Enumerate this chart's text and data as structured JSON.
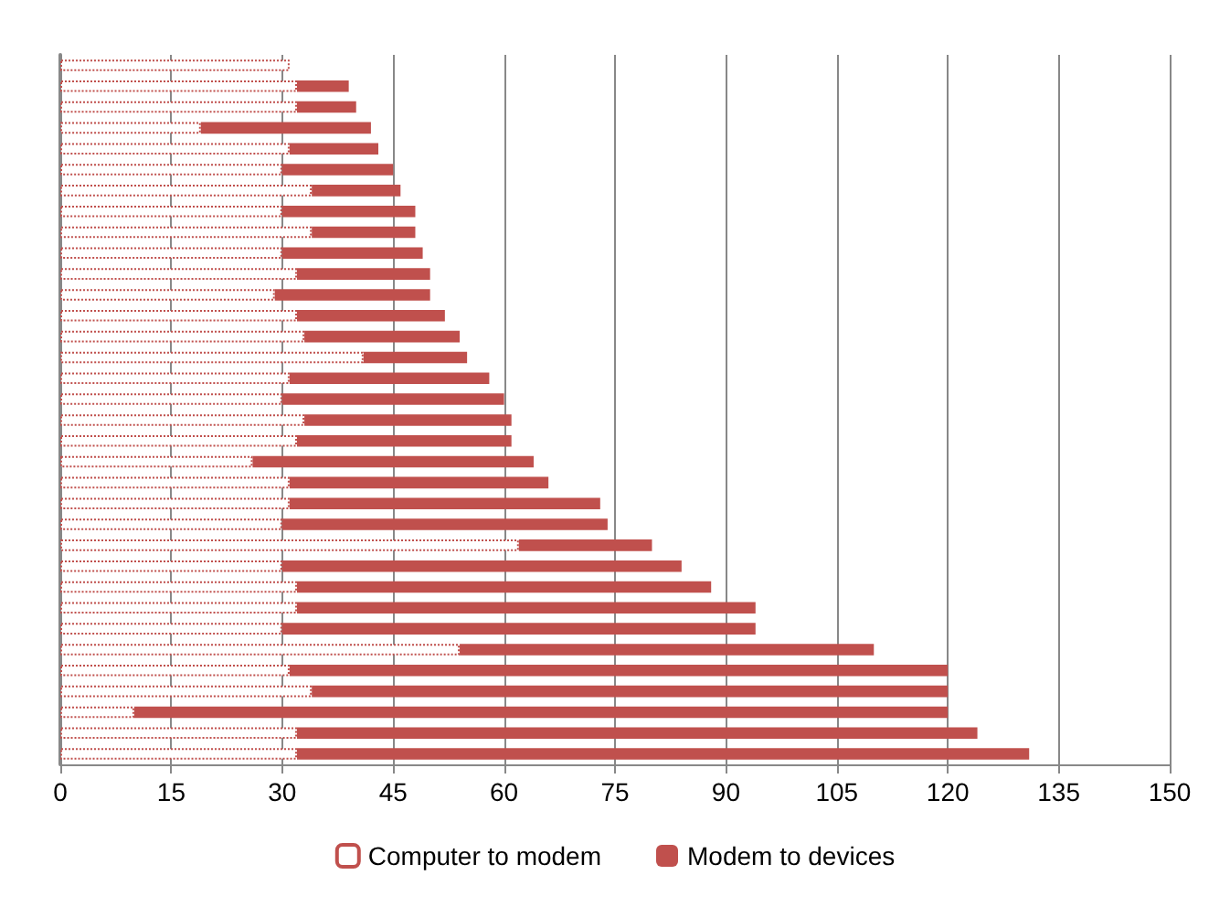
{
  "chart_data": {
    "type": "bar",
    "orientation": "horizontal",
    "stacked": true,
    "categories": [
      null,
      null,
      null,
      null,
      null,
      null,
      null,
      null,
      null,
      null,
      null,
      null,
      null,
      null,
      null,
      null,
      null,
      null,
      null,
      null,
      null,
      null,
      null,
      null,
      null,
      null,
      null,
      null,
      null,
      null,
      null,
      null,
      null,
      null
    ],
    "series": [
      {
        "name": "Computer to modem",
        "color": "#c0504d",
        "line_style": "dotted",
        "values": [
          31,
          32,
          32,
          19,
          31,
          30,
          34,
          30,
          34,
          30,
          32,
          29,
          32,
          33,
          41,
          31,
          30,
          33,
          32,
          26,
          31,
          31,
          30,
          62,
          30,
          32,
          32,
          30,
          54,
          31,
          34,
          10,
          32,
          32
        ]
      },
      {
        "name": "Modem to devices",
        "color": "#c0504d",
        "values": [
          0,
          7,
          8,
          23,
          12,
          15,
          12,
          18,
          14,
          19,
          18,
          21,
          20,
          21,
          14,
          27,
          30,
          28,
          29,
          38,
          35,
          42,
          44,
          18,
          54,
          56,
          62,
          64,
          56,
          89,
          86,
          110,
          92,
          99
        ]
      }
    ],
    "xlim": [
      0,
      150
    ],
    "xticks": [
      0,
      15,
      30,
      45,
      60,
      75,
      90,
      105,
      120,
      135,
      150
    ],
    "grid": "x",
    "legend": "bottom"
  }
}
